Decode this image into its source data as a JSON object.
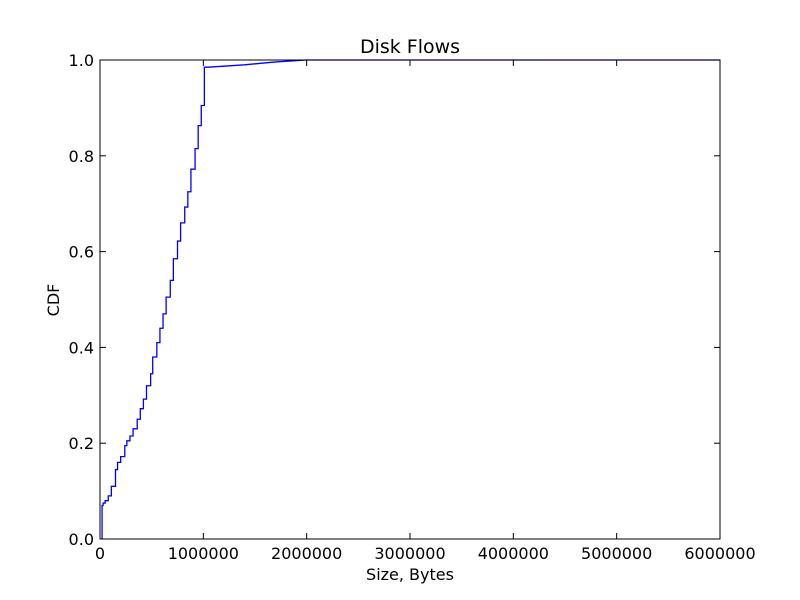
{
  "chart_data": {
    "type": "line",
    "title": "Disk Flows",
    "xlabel": "Size, Bytes",
    "ylabel": "CDF",
    "xlim": [
      0,
      6000000
    ],
    "ylim": [
      0,
      1.0
    ],
    "xticks": [
      0,
      1000000,
      2000000,
      3000000,
      4000000,
      5000000,
      6000000
    ],
    "xtick_labels": [
      "0",
      "1000000",
      "2000000",
      "3000000",
      "4000000",
      "5000000",
      "6000000"
    ],
    "yticks": [
      0,
      0.2,
      0.4,
      0.6,
      0.8,
      1.0
    ],
    "ytick_labels": [
      "0.0",
      "0.2",
      "0.4",
      "0.6",
      "0.8",
      "1.0"
    ],
    "grid": false,
    "line_color": "#0000ff",
    "series": [
      {
        "step": true,
        "x": [
          20000,
          30000,
          50000,
          80000,
          110000,
          150000,
          170000,
          200000,
          240000,
          260000,
          290000,
          320000,
          360000,
          390000,
          420000,
          450000,
          490000,
          510000,
          550000,
          580000,
          610000,
          640000,
          680000,
          710000,
          750000,
          780000,
          820000,
          850000,
          880000,
          920000,
          950000,
          980000,
          1010000,
          1040000,
          1050000,
          1400000,
          1700000,
          2000000
        ],
        "y": [
          0.07,
          0.075,
          0.08,
          0.09,
          0.11,
          0.145,
          0.16,
          0.172,
          0.195,
          0.205,
          0.215,
          0.23,
          0.25,
          0.272,
          0.292,
          0.32,
          0.345,
          0.38,
          0.41,
          0.44,
          0.47,
          0.505,
          0.54,
          0.585,
          0.622,
          0.66,
          0.693,
          0.725,
          0.772,
          0.815,
          0.863,
          0.905,
          0.985,
          0.985,
          0.985,
          0.99,
          0.996,
          1.0
        ]
      }
    ]
  }
}
